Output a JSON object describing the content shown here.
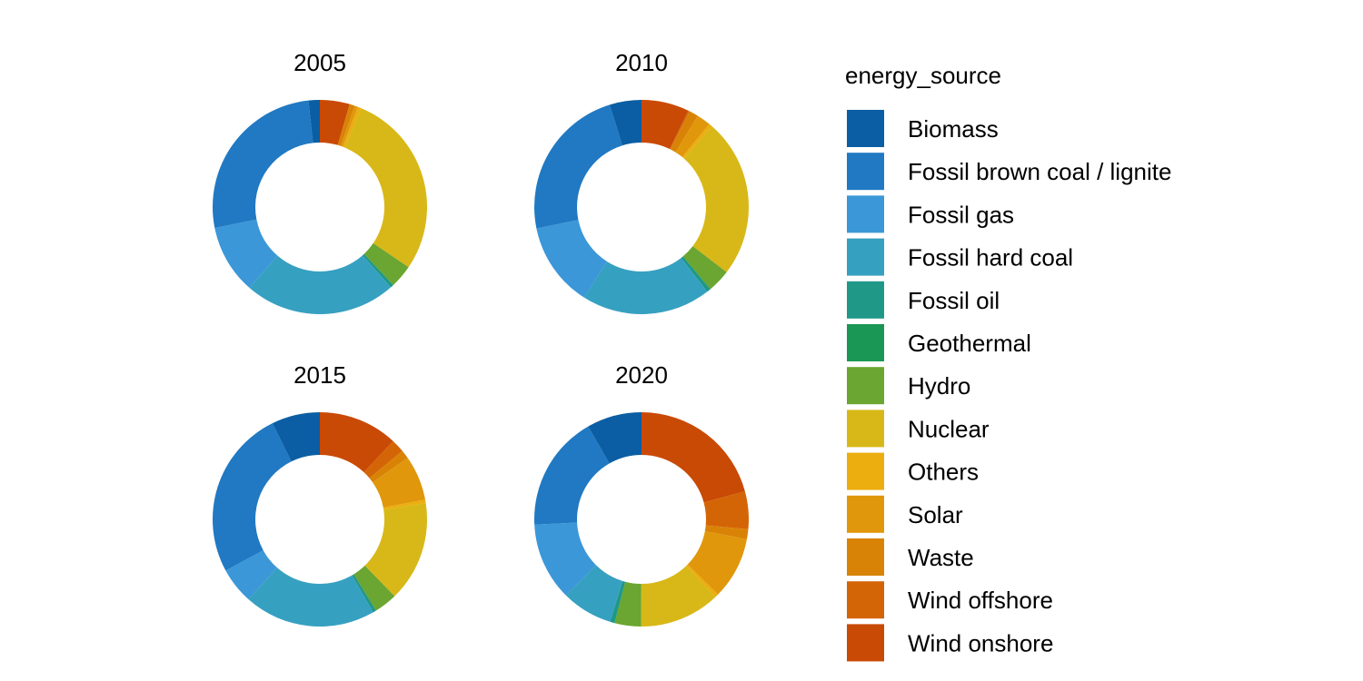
{
  "chart_data": {
    "type": "pie",
    "subtype": "donut",
    "facet_by": "year",
    "legend_title": "energy_source",
    "legend_position": "right",
    "categories": [
      "Biomass",
      "Fossil brown coal / lignite",
      "Fossil gas",
      "Fossil hard coal",
      "Fossil oil",
      "Geothermal",
      "Hydro",
      "Nuclear",
      "Others",
      "Solar",
      "Waste",
      "Wind offshore",
      "Wind onshore"
    ],
    "colors": [
      "#0b5ea3",
      "#2079c2",
      "#3b97d8",
      "#36a0c1",
      "#1f9888",
      "#1a9655",
      "#6aa631",
      "#d8b818",
      "#ecad0f",
      "#e0970c",
      "#d88306",
      "#d46507",
      "#c94a05"
    ],
    "panels": [
      {
        "title": "2005",
        "values": [
          1.7,
          26.5,
          10.5,
          23.0,
          0.5,
          0.0,
          3.5,
          28.3,
          0.5,
          0.5,
          0.8,
          0.0,
          4.5
        ]
      },
      {
        "title": "2010",
        "values": [
          4.8,
          23.4,
          12.8,
          19.5,
          0.6,
          0.0,
          3.5,
          24.0,
          0.5,
          2.1,
          1.4,
          0.2,
          7.2
        ]
      },
      {
        "title": "2015",
        "values": [
          7.3,
          25.7,
          5.5,
          19.9,
          0.5,
          0.0,
          3.5,
          15.2,
          0.5,
          6.8,
          1.3,
          2.0,
          12.0
        ]
      },
      {
        "title": "2020",
        "values": [
          8.3,
          17.5,
          11.8,
          7.7,
          0.7,
          0.0,
          4.0,
          12.2,
          0.5,
          9.4,
          1.5,
          5.7,
          20.8
        ]
      }
    ]
  }
}
